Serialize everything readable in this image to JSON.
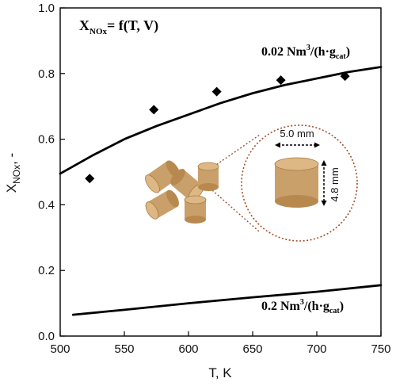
{
  "chart_data": {
    "type": "line",
    "title": "",
    "xlabel": "T, K",
    "ylabel": "X_NOx, -",
    "xlim": [
      500,
      750
    ],
    "ylim": [
      0.0,
      1.0
    ],
    "x_ticks": [
      500,
      550,
      600,
      650,
      700,
      750
    ],
    "y_ticks": [
      0.0,
      0.2,
      0.4,
      0.6,
      0.8,
      1.0
    ],
    "y_tick_labels": [
      "0.0",
      "0.2",
      "0.4",
      "0.6",
      "0.8",
      "1.0"
    ],
    "grid": false,
    "series": [
      {
        "label_main": "0.02 Nm",
        "label_sup": "3",
        "label_mid": "/(h·g",
        "label_sub": "cat",
        "label_end": ")",
        "model_x": [
          500,
          525,
          550,
          575,
          600,
          625,
          650,
          675,
          700,
          725,
          750
        ],
        "model_y": [
          0.495,
          0.55,
          0.6,
          0.64,
          0.675,
          0.71,
          0.74,
          0.765,
          0.785,
          0.805,
          0.82
        ],
        "points_x": [
          523,
          573,
          622,
          672,
          722
        ],
        "points_y": [
          0.48,
          0.69,
          0.745,
          0.78,
          0.792
        ]
      },
      {
        "label_main": "0.2 Nm",
        "label_sup": "3",
        "label_mid": "/(h·g",
        "label_sub": "cat",
        "label_end": ")",
        "model_x": [
          510,
          550,
          600,
          650,
          700,
          750
        ],
        "model_y": [
          0.065,
          0.08,
          0.1,
          0.118,
          0.135,
          0.155
        ],
        "points_x": [],
        "points_y": []
      }
    ],
    "equation": {
      "var": "X",
      "sub": "NOx",
      "rhs": "= f(T, V)"
    },
    "inset": {
      "diameter_label": "5.0 mm",
      "height_label": "4.8 mm"
    },
    "colors": {
      "line": "#000000",
      "marker": "#000000",
      "pellet": "#c9a06a",
      "pellet_dark": "#a57c45",
      "pellet_top": "#ddb884",
      "dotted": "#a0502a"
    }
  }
}
